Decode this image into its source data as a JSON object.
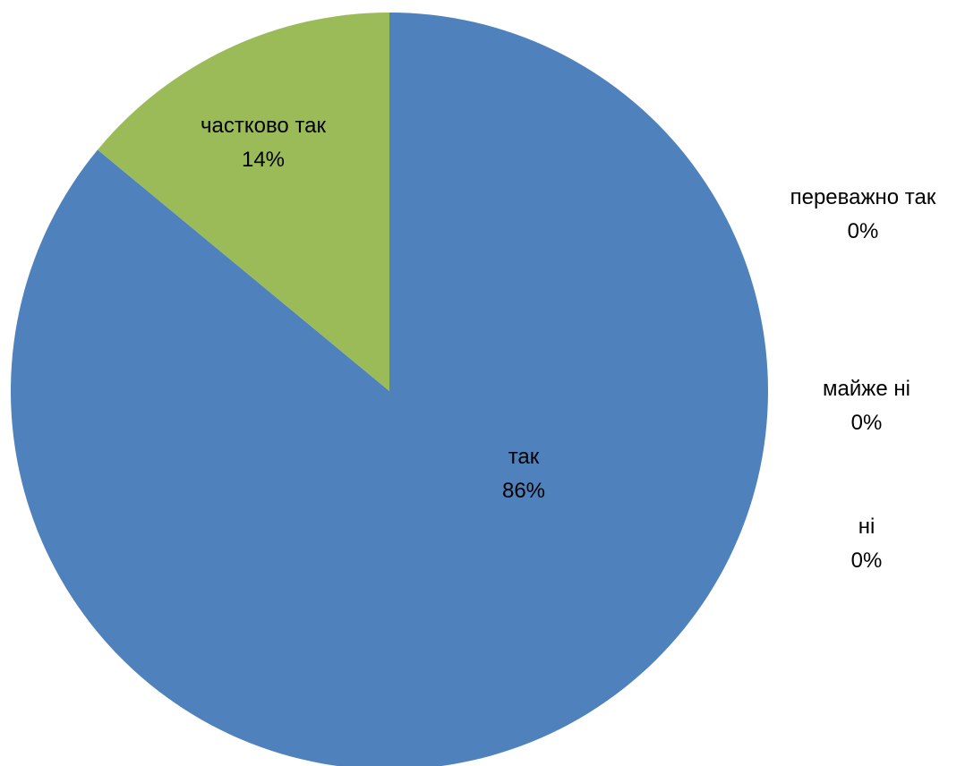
{
  "chart_data": {
    "type": "pie",
    "title": "",
    "slices": [
      {
        "label": "так",
        "value": 86,
        "percent_label": "86%",
        "color": "#4F81BD"
      },
      {
        "label": "переважно так",
        "value": 0,
        "percent_label": "0%",
        "color": "#C0504D"
      },
      {
        "label": "частково так",
        "value": 14,
        "percent_label": "14%",
        "color": "#9BBB59"
      },
      {
        "label": "майже ні",
        "value": 0,
        "percent_label": "0%",
        "color": "#8064A2"
      },
      {
        "label": "ні",
        "value": 0,
        "percent_label": "0%",
        "color": "#4BACC6"
      }
    ],
    "start_angle": "12 o'clock",
    "direction": "clockwise",
    "legend": "none"
  }
}
